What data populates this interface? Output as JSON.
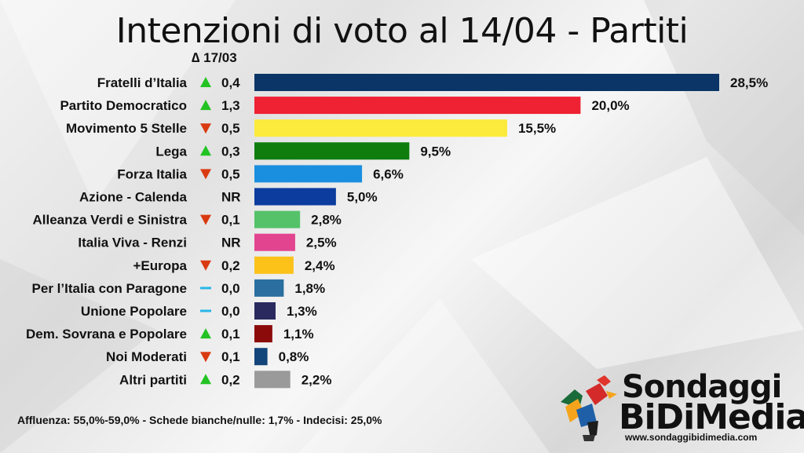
{
  "title": "Intenzioni di voto al 14/04 - Partiti",
  "delta_header": "∆ 17/03",
  "footer": "Affluenza: 55,0%-59,0% - Schede bianche/nulle: 1,7% - Indecisi: 25,0%",
  "logo": {
    "line1": "Sondaggi",
    "line2": "BiDiMedia",
    "url": "www.sondaggibidimedia.com"
  },
  "colors": {
    "up": "#22c322",
    "down": "#d93a10",
    "neutral": "#29b6e8"
  },
  "chart_data": {
    "type": "bar",
    "orientation": "horizontal",
    "title": "Intenzioni di voto al 14/04 - Partiti",
    "xlim": [
      0,
      28.5
    ],
    "categories": [
      "Fratelli d’Italia",
      "Partito Democratico",
      "Movimento 5 Stelle",
      "Lega",
      "Forza Italia",
      "Azione - Calenda",
      "Alleanza Verdi e Sinistra",
      "Italia Viva - Renzi",
      "+Europa",
      "Per l’Italia con Paragone",
      "Unione Popolare",
      "Dem. Sovrana e Popolare",
      "Noi Moderati",
      "Altri partiti"
    ],
    "values": [
      28.5,
      20.0,
      15.5,
      9.5,
      6.6,
      5.0,
      2.8,
      2.5,
      2.4,
      1.8,
      1.3,
      1.1,
      0.8,
      2.2
    ],
    "value_labels": [
      "28,5%",
      "20,0%",
      "15,5%",
      "9,5%",
      "6,6%",
      "5,0%",
      "2,8%",
      "2,5%",
      "2,4%",
      "1,8%",
      "1,3%",
      "1,1%",
      "0,8%",
      "2,2%"
    ],
    "bar_colors": [
      "#0b3566",
      "#ee2233",
      "#fcea3c",
      "#0e7d0e",
      "#1a8fe0",
      "#0b3c9e",
      "#55c26a",
      "#e2448f",
      "#fcc21a",
      "#2a6f9f",
      "#2a2a5e",
      "#8b0a0a",
      "#13457a",
      "#9a9a9a"
    ],
    "delta_labels": [
      "0,4",
      "1,3",
      "0,5",
      "0,3",
      "0,5",
      "NR",
      "0,1",
      "NR",
      "0,2",
      "0,0",
      "0,0",
      "0,1",
      "0,1",
      "0,2"
    ],
    "delta_trend": [
      "up",
      "up",
      "down",
      "up",
      "down",
      "none",
      "down",
      "none",
      "down",
      "neutral",
      "neutral",
      "up",
      "down",
      "up"
    ]
  }
}
